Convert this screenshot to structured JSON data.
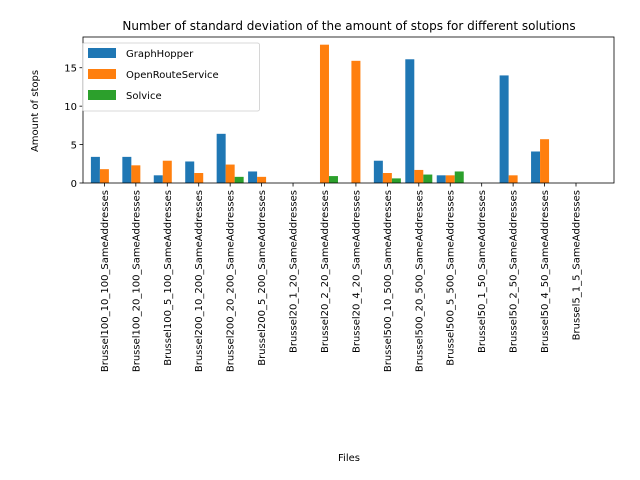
{
  "chart_data": {
    "type": "bar",
    "title": "Number of standard deviation of the amount of stops for different solutions",
    "xlabel": "Files",
    "ylabel": "Amount of stops",
    "ylim": [
      0,
      19.0
    ],
    "yticks": [
      0,
      5,
      10,
      15
    ],
    "grid": false,
    "legend_position": "upper-left",
    "categories": [
      "Brussel100_10_100_SameAddresses",
      "Brussel100_20_100_SameAddresses",
      "Brussel100_5_100_SameAddresses",
      "Brussel200_10_200_SameAddresses",
      "Brussel200_20_200_SameAddresses",
      "Brussel200_5_200_SameAddresses",
      "Brussel20_1_20_SameAddresses",
      "Brussel20_2_20_SameAddresses",
      "Brussel20_4_20_SameAddresses",
      "Brussel500_10_500_SameAddresses",
      "Brussel500_20_500_SameAddresses",
      "Brussel500_5_500_SameAddresses",
      "Brussel50_1_50_SameAddresses",
      "Brussel50_2_50_SameAddresses",
      "Brussel50_4_50_SameAddresses",
      "Brussel5_1_5_SameAddresses"
    ],
    "series": [
      {
        "name": "GraphHopper",
        "color": "#1f77b4",
        "values": [
          3.4,
          3.4,
          1.0,
          2.8,
          6.4,
          1.5,
          0,
          0,
          0,
          2.9,
          16.1,
          1.0,
          0,
          14.0,
          4.1,
          0
        ]
      },
      {
        "name": "OpenRouteService",
        "color": "#ff7f0e",
        "values": [
          1.8,
          2.3,
          2.9,
          1.3,
          2.4,
          0.8,
          0,
          18.0,
          15.9,
          1.3,
          1.7,
          1.0,
          0,
          1.0,
          5.7,
          0
        ]
      },
      {
        "name": "Solvice",
        "color": "#2ca02c",
        "values": [
          0,
          0,
          0,
          0,
          0.8,
          0,
          0,
          0.9,
          0,
          0.6,
          1.1,
          1.5,
          0,
          0,
          0,
          0
        ]
      }
    ]
  }
}
